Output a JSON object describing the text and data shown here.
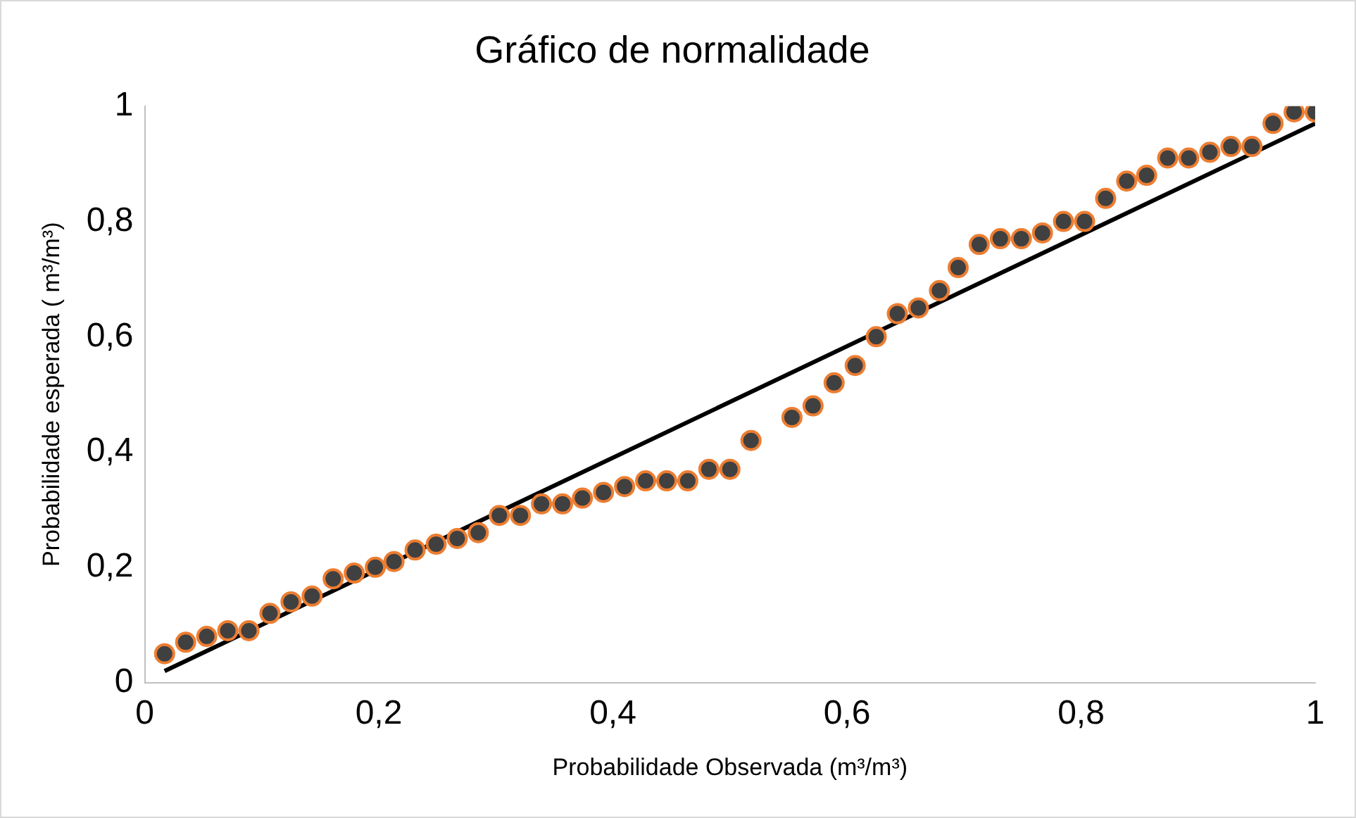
{
  "chart_data": {
    "type": "scatter",
    "title": "Gráfico de normalidade",
    "xlabel": "Probabilidade Observada (m³/m³)",
    "ylabel": "Probabilidade esperada ( m³/m³)",
    "xlim": [
      0,
      1
    ],
    "ylim": [
      0,
      1
    ],
    "xticks": [
      0,
      {
        "value": 0.2,
        "label": "0,2"
      },
      {
        "value": 0.4,
        "label": "0,4"
      },
      {
        "value": 0.6,
        "label": "0,6"
      },
      {
        "value": 0.8,
        "label": "0,8"
      },
      1
    ],
    "yticks": [
      0,
      {
        "value": 0.2,
        "label": "0,2"
      },
      {
        "value": 0.4,
        "label": "0,4"
      },
      {
        "value": 0.6,
        "label": "0,6"
      },
      {
        "value": 0.8,
        "label": "0,8"
      },
      1
    ],
    "grid": false,
    "legend": false,
    "marker": "circle",
    "series": [
      {
        "color": "#404040",
        "x": [
          0.017,
          0.035,
          0.053,
          0.071,
          0.089,
          0.107,
          0.125,
          0.143,
          0.161,
          0.179,
          0.197,
          0.213,
          0.231,
          0.249,
          0.267,
          0.285,
          0.303,
          0.321,
          0.339,
          0.357,
          0.374,
          0.392,
          0.41,
          0.428,
          0.446,
          0.464,
          0.482,
          0.5,
          0.518,
          0.553,
          0.571,
          0.589,
          0.607,
          0.625,
          0.643,
          0.661,
          0.679,
          0.695,
          0.713,
          0.731,
          0.749,
          0.767,
          0.785,
          0.803,
          0.821,
          0.839,
          0.856,
          0.874,
          0.892,
          0.91,
          0.928,
          0.946,
          0.964,
          0.982,
          1.0
        ],
        "values": [
          0.05,
          0.07,
          0.08,
          0.09,
          0.09,
          0.12,
          0.14,
          0.15,
          0.18,
          0.19,
          0.2,
          0.21,
          0.23,
          0.24,
          0.25,
          0.26,
          0.29,
          0.29,
          0.31,
          0.31,
          0.32,
          0.33,
          0.34,
          0.35,
          0.35,
          0.35,
          0.37,
          0.37,
          0.42,
          0.46,
          0.48,
          0.52,
          0.55,
          0.6,
          0.64,
          0.65,
          0.68,
          0.72,
          0.76,
          0.77,
          0.77,
          0.78,
          0.8,
          0.8,
          0.84,
          0.87,
          0.88,
          0.91,
          0.91,
          0.92,
          0.93,
          0.93,
          0.97,
          0.99,
          0.99
        ]
      },
      {
        "type": "line",
        "color": "#000000",
        "marker": "none",
        "line_style": "solid",
        "x": [
          0.017,
          1.0
        ],
        "values": [
          0.02,
          0.97
        ]
      }
    ]
  }
}
